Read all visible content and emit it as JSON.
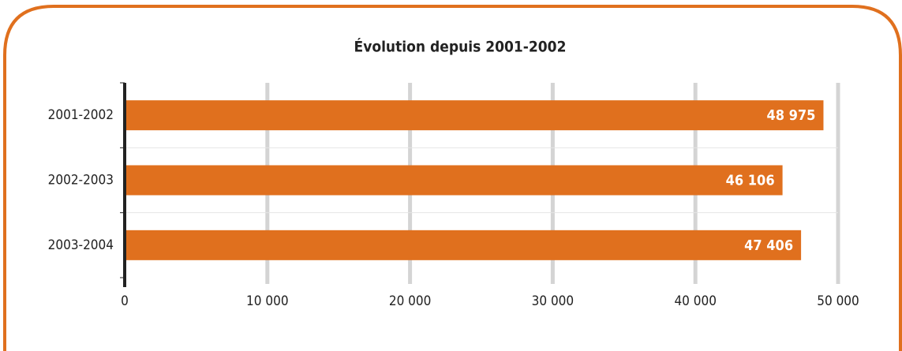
{
  "chart_data": {
    "type": "bar",
    "orientation": "horizontal",
    "title": "Évolution depuis 2001-2002",
    "categories": [
      "2001-2002",
      "2002-2003",
      "2003-2004"
    ],
    "values": [
      48975,
      46106,
      47406
    ],
    "value_labels": [
      "48 975",
      "46 106",
      "47 406"
    ],
    "color": "#e0701e",
    "xlim": [
      0,
      50000
    ],
    "xticks": [
      0,
      {
        "value": 10000,
        "label": "10 000"
      },
      {
        "value": 20000,
        "label": "20 000"
      },
      {
        "value": 30000,
        "label": "30 000"
      },
      {
        "value": 40000,
        "label": "40 000"
      },
      {
        "value": 50000,
        "label": "50 000"
      }
    ],
    "grid": true
  }
}
